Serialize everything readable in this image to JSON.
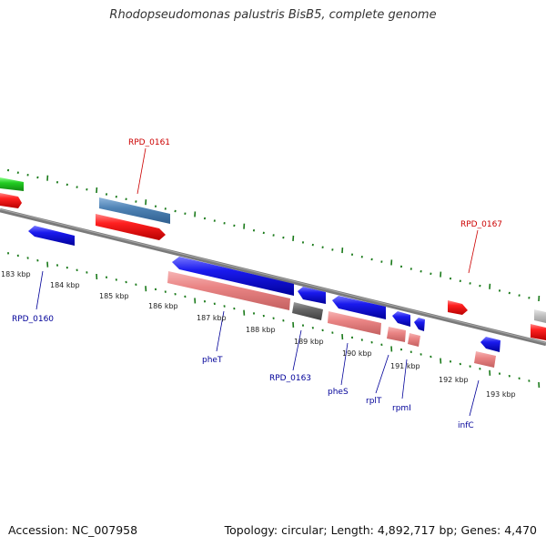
{
  "header": {
    "title": "Rhodopseudomonas palustris BisB5, complete genome"
  },
  "footer": {
    "accession": "Accession: NC_007958",
    "summary": "Topology: circular; Length: 4,892,717 bp; Genes: 4,470"
  },
  "axis": {
    "kbp_labels": [
      "183 kbp",
      "184 kbp",
      "185 kbp",
      "186 kbp",
      "187 kbp",
      "188 kbp",
      "189 kbp",
      "190 kbp",
      "191 kbp",
      "192 kbp",
      "193 kbp"
    ]
  },
  "gene_labels": {
    "top": [
      {
        "name": "RPD_0161",
        "color": "#cc0000"
      },
      {
        "name": "RPD_0167",
        "color": "#cc0000"
      }
    ],
    "bottom": [
      {
        "name": "RPD_0160",
        "color": "#000099"
      },
      {
        "name": "pheT",
        "color": "#000099"
      },
      {
        "name": "RPD_0163",
        "color": "#000099"
      },
      {
        "name": "pheS",
        "color": "#000099"
      },
      {
        "name": "rplT",
        "color": "#000099"
      },
      {
        "name": "rpmI",
        "color": "#000099"
      },
      {
        "name": "infC",
        "color": "#000099"
      }
    ]
  },
  "colors": {
    "backbone": "#808080",
    "tick": "#1a7a1a",
    "red_gene": "#ee1111",
    "blue_gene": "#1515dd",
    "pink_gene": "#e88080",
    "steel_gene": "#4a7fb0",
    "green_gene": "#22cc22",
    "gray_gene": "#666666",
    "light_gene": "#bdbdbd"
  }
}
